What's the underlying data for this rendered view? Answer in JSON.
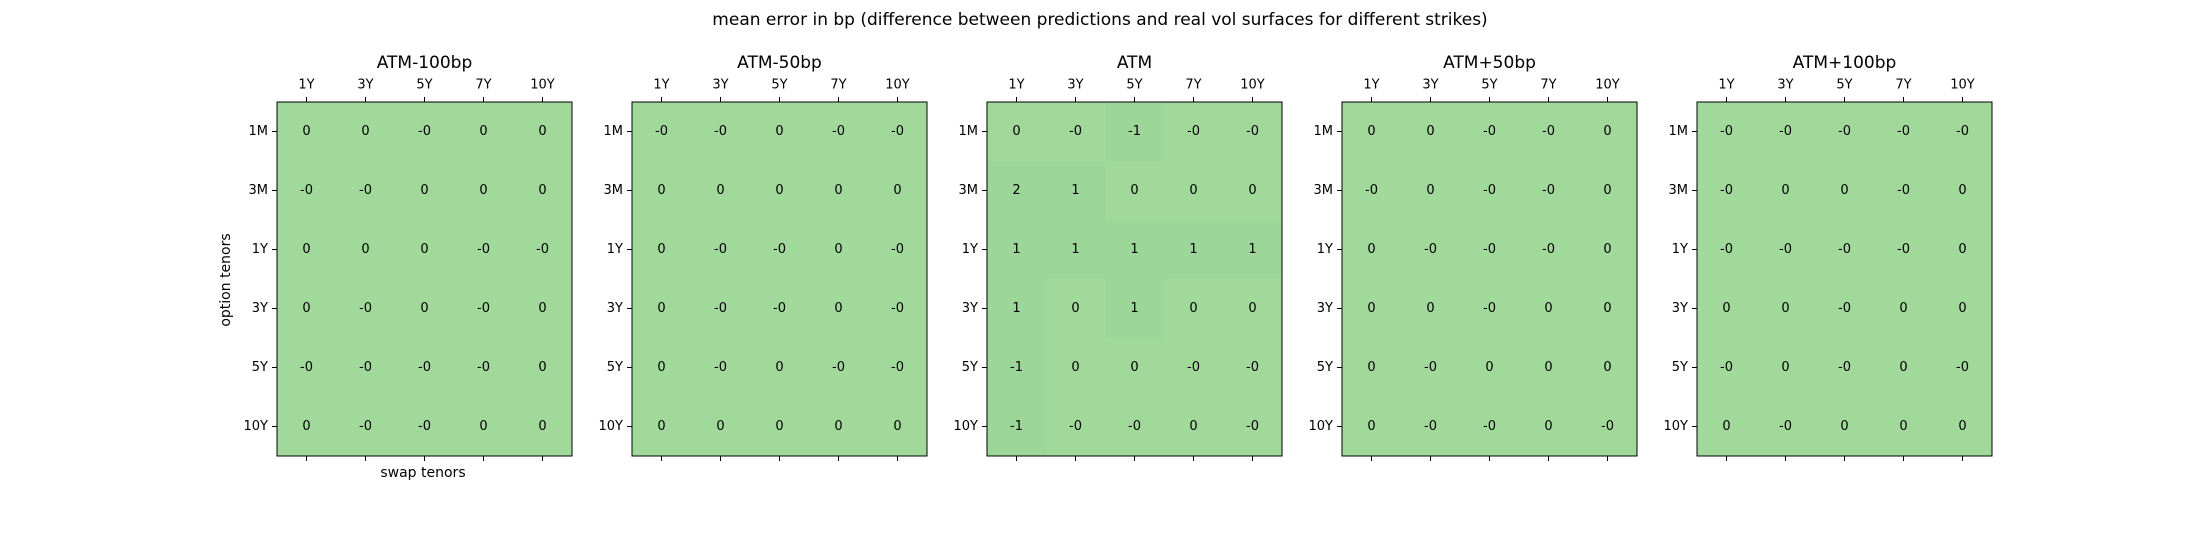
{
  "figure": {
    "title": "mean error in bp (difference between predictions and real vol surfaces for different strikes)",
    "xlabel": "swap tenors",
    "ylabel": "option tenors"
  },
  "colors": {
    "cell_base": "#a1d99b",
    "cell_tint": "#9dd699",
    "border": "#000000",
    "text": "#000000"
  },
  "chart_data": [
    {
      "type": "heatmap",
      "title": "ATM-100bp",
      "x_categories": [
        "1Y",
        "3Y",
        "5Y",
        "7Y",
        "10Y"
      ],
      "y_categories": [
        "1M",
        "3M",
        "1Y",
        "3Y",
        "5Y",
        "10Y"
      ],
      "xlabel": "swap tenors",
      "ylabel": "option tenors",
      "values": [
        [
          "0",
          "0",
          "-0",
          "0",
          "0"
        ],
        [
          "-0",
          "-0",
          "0",
          "0",
          "0"
        ],
        [
          "0",
          "0",
          "0",
          "-0",
          "-0"
        ],
        [
          "0",
          "-0",
          "0",
          "-0",
          "0"
        ],
        [
          "-0",
          "-0",
          "-0",
          "-0",
          "0"
        ],
        [
          "0",
          "-0",
          "-0",
          "0",
          "0"
        ]
      ]
    },
    {
      "type": "heatmap",
      "title": "ATM-50bp",
      "x_categories": [
        "1Y",
        "3Y",
        "5Y",
        "7Y",
        "10Y"
      ],
      "y_categories": [
        "1M",
        "3M",
        "1Y",
        "3Y",
        "5Y",
        "10Y"
      ],
      "values": [
        [
          "-0",
          "-0",
          "0",
          "-0",
          "-0"
        ],
        [
          "0",
          "0",
          "0",
          "0",
          "0"
        ],
        [
          "0",
          "-0",
          "-0",
          "0",
          "-0"
        ],
        [
          "0",
          "-0",
          "-0",
          "0",
          "-0"
        ],
        [
          "0",
          "-0",
          "0",
          "-0",
          "-0"
        ],
        [
          "0",
          "0",
          "0",
          "0",
          "0"
        ]
      ]
    },
    {
      "type": "heatmap",
      "title": "ATM",
      "x_categories": [
        "1Y",
        "3Y",
        "5Y",
        "7Y",
        "10Y"
      ],
      "y_categories": [
        "1M",
        "3M",
        "1Y",
        "3Y",
        "5Y",
        "10Y"
      ],
      "values": [
        [
          "0",
          "-0",
          "-1",
          "-0",
          "-0"
        ],
        [
          "2",
          "1",
          "0",
          "0",
          "0"
        ],
        [
          "1",
          "1",
          "1",
          "1",
          "1"
        ],
        [
          "1",
          "0",
          "1",
          "0",
          "0"
        ],
        [
          "-1",
          "0",
          "0",
          "-0",
          "-0"
        ],
        [
          "-1",
          "-0",
          "-0",
          "0",
          "-0"
        ]
      ]
    },
    {
      "type": "heatmap",
      "title": "ATM+50bp",
      "x_categories": [
        "1Y",
        "3Y",
        "5Y",
        "7Y",
        "10Y"
      ],
      "y_categories": [
        "1M",
        "3M",
        "1Y",
        "3Y",
        "5Y",
        "10Y"
      ],
      "values": [
        [
          "0",
          "0",
          "-0",
          "-0",
          "0"
        ],
        [
          "-0",
          "0",
          "-0",
          "-0",
          "0"
        ],
        [
          "0",
          "-0",
          "-0",
          "-0",
          "0"
        ],
        [
          "0",
          "0",
          "-0",
          "0",
          "0"
        ],
        [
          "0",
          "-0",
          "0",
          "0",
          "0"
        ],
        [
          "0",
          "-0",
          "-0",
          "0",
          "-0"
        ]
      ]
    },
    {
      "type": "heatmap",
      "title": "ATM+100bp",
      "x_categories": [
        "1Y",
        "3Y",
        "5Y",
        "7Y",
        "10Y"
      ],
      "y_categories": [
        "1M",
        "3M",
        "1Y",
        "3Y",
        "5Y",
        "10Y"
      ],
      "values": [
        [
          "-0",
          "-0",
          "-0",
          "-0",
          "-0"
        ],
        [
          "-0",
          "0",
          "0",
          "-0",
          "0"
        ],
        [
          "-0",
          "-0",
          "-0",
          "-0",
          "0"
        ],
        [
          "0",
          "0",
          "-0",
          "0",
          "0"
        ],
        [
          "-0",
          "0",
          "-0",
          "0",
          "-0"
        ],
        [
          "0",
          "-0",
          "0",
          "0",
          "0"
        ]
      ]
    }
  ]
}
